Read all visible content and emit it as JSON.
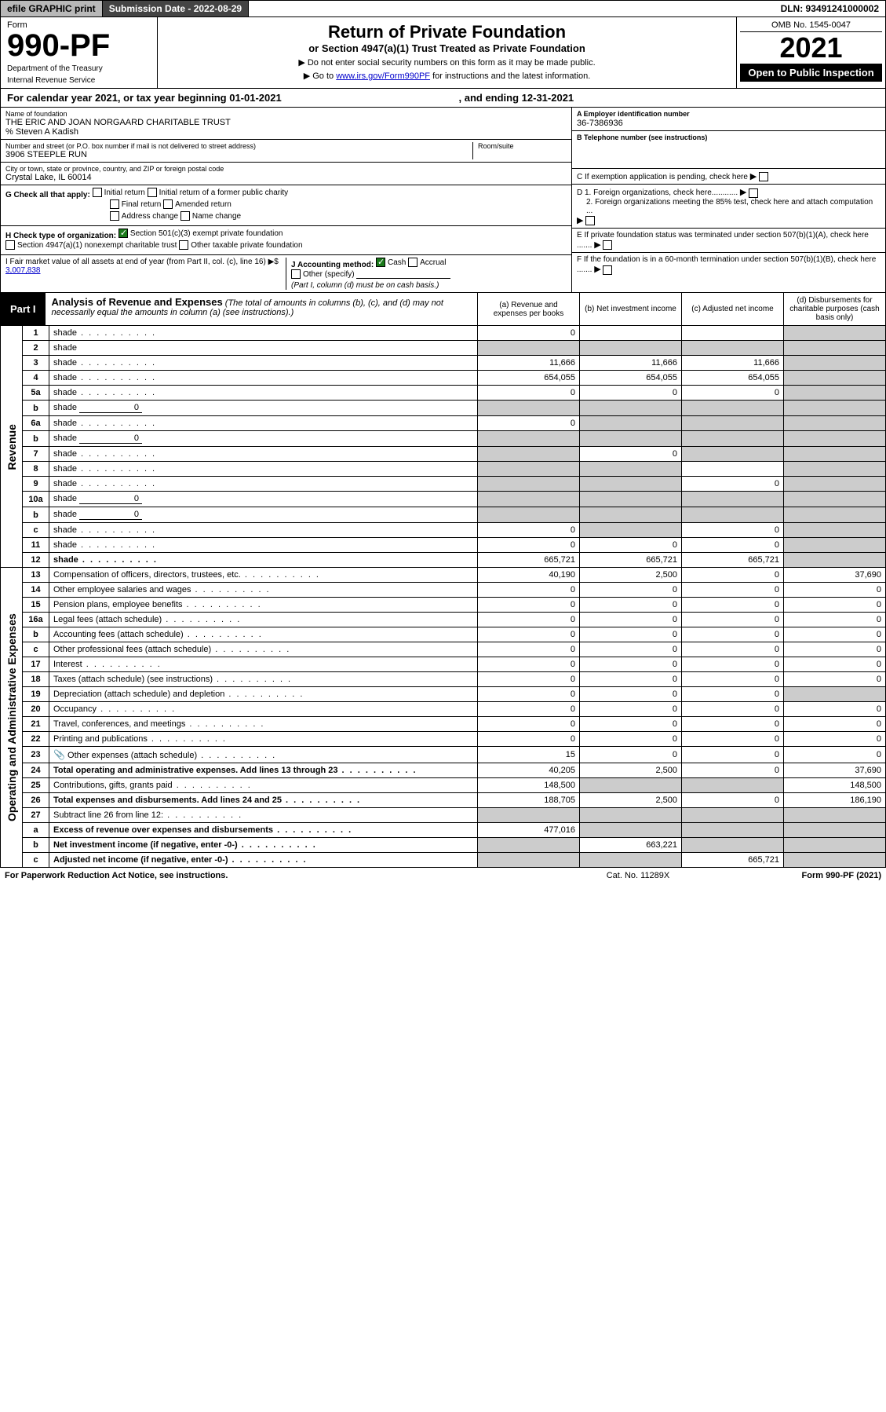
{
  "topbar": {
    "efile": "efile GRAPHIC print",
    "subdate_label": "Submission Date - 2022-08-29",
    "dln": "DLN: 93491241000002"
  },
  "header": {
    "form_label": "Form",
    "form_number": "990-PF",
    "dept1": "Department of the Treasury",
    "dept2": "Internal Revenue Service",
    "title": "Return of Private Foundation",
    "subtitle": "or Section 4947(a)(1) Trust Treated as Private Foundation",
    "instr1": "▶ Do not enter social security numbers on this form as it may be made public.",
    "instr2_prefix": "▶ Go to ",
    "instr2_link": "www.irs.gov/Form990PF",
    "instr2_suffix": " for instructions and the latest information.",
    "omb": "OMB No. 1545-0047",
    "tax_year": "2021",
    "open_public": "Open to Public Inspection"
  },
  "calendar": {
    "left": "For calendar year 2021, or tax year beginning 01-01-2021",
    "right": ", and ending 12-31-2021"
  },
  "info": {
    "name_lbl": "Name of foundation",
    "name_val": "THE ERIC AND JOAN NORGAARD CHARITABLE TRUST",
    "careof": "% Steven A Kadish",
    "addr_lbl": "Number and street (or P.O. box number if mail is not delivered to street address)",
    "addr_val": "3906 STEEPLE RUN",
    "room_lbl": "Room/suite",
    "city_lbl": "City or town, state or province, country, and ZIP or foreign postal code",
    "city_val": "Crystal Lake, IL  60014",
    "a_lbl": "A Employer identification number",
    "a_val": "36-7386936",
    "b_lbl": "B Telephone number (see instructions)",
    "c_lbl": "C If exemption application is pending, check here",
    "d1_lbl": "D 1. Foreign organizations, check here............",
    "d2_lbl": "2. Foreign organizations meeting the 85% test, check here and attach computation ...",
    "e_lbl": "E  If private foundation status was terminated under section 507(b)(1)(A), check here .......",
    "f_lbl": "F  If the foundation is in a 60-month termination under section 507(b)(1)(B), check here ......."
  },
  "g": {
    "label": "G Check all that apply:",
    "opts": [
      "Initial return",
      "Final return",
      "Address change",
      "Initial return of a former public charity",
      "Amended return",
      "Name change"
    ]
  },
  "h": {
    "label": "H Check type of organization:",
    "opt1": "Section 501(c)(3) exempt private foundation",
    "opt2": "Section 4947(a)(1) nonexempt charitable trust",
    "opt3": "Other taxable private foundation"
  },
  "i": {
    "label": "I Fair market value of all assets at end of year (from Part II, col. (c), line 16) ▶$",
    "val": "3,007,838"
  },
  "j": {
    "label": "J Accounting method:",
    "cash": "Cash",
    "accrual": "Accrual",
    "other": "Other (specify)",
    "note": "(Part I, column (d) must be on cash basis.)"
  },
  "part1": {
    "label": "Part I",
    "title": "Analysis of Revenue and Expenses",
    "title_note": " (The total of amounts in columns (b), (c), and (d) may not necessarily equal the amounts in column (a) (see instructions).)",
    "col_a": "(a)  Revenue and expenses per books",
    "col_b": "(b)  Net investment income",
    "col_c": "(c)  Adjusted net income",
    "col_d": "(d)  Disbursements for charitable purposes (cash basis only)"
  },
  "vlabels": {
    "revenue": "Revenue",
    "expenses": "Operating and Administrative Expenses"
  },
  "rows": [
    {
      "n": "1",
      "d": "shade",
      "a": "0",
      "b": "",
      "c": ""
    },
    {
      "n": "2",
      "d": "shade",
      "a": "shade",
      "b": "shade",
      "c": "shade",
      "dotsOnly": true
    },
    {
      "n": "3",
      "d": "shade",
      "a": "11,666",
      "b": "11,666",
      "c": "11,666"
    },
    {
      "n": "4",
      "d": "shade",
      "a": "654,055",
      "b": "654,055",
      "c": "654,055"
    },
    {
      "n": "5a",
      "d": "shade",
      "a": "0",
      "b": "0",
      "c": "0"
    },
    {
      "n": "b",
      "d": "shade",
      "inline": "0",
      "a": "shade",
      "b": "shade",
      "c": "shade"
    },
    {
      "n": "6a",
      "d": "shade",
      "a": "0",
      "b": "shade",
      "c": "shade"
    },
    {
      "n": "b",
      "d": "shade",
      "inline": "0",
      "a": "shade",
      "b": "shade",
      "c": "shade"
    },
    {
      "n": "7",
      "d": "shade",
      "a": "shade",
      "b": "0",
      "c": "shade"
    },
    {
      "n": "8",
      "d": "shade",
      "a": "shade",
      "b": "shade",
      "c": ""
    },
    {
      "n": "9",
      "d": "shade",
      "a": "shade",
      "b": "shade",
      "c": "0"
    },
    {
      "n": "10a",
      "d": "shade",
      "inline": "0",
      "a": "shade",
      "b": "shade",
      "c": "shade"
    },
    {
      "n": "b",
      "d": "shade",
      "inline": "0",
      "a": "shade",
      "b": "shade",
      "c": "shade"
    },
    {
      "n": "c",
      "d": "shade",
      "a": "0",
      "b": "shade",
      "c": "0"
    },
    {
      "n": "11",
      "d": "shade",
      "a": "0",
      "b": "0",
      "c": "0"
    },
    {
      "n": "12",
      "d": "shade",
      "a": "665,721",
      "b": "665,721",
      "c": "665,721",
      "bold": true
    }
  ],
  "exp_rows": [
    {
      "n": "13",
      "d": "Compensation of officers, directors, trustees, etc.",
      "a": "40,190",
      "b": "2,500",
      "c": "0",
      "e": "37,690"
    },
    {
      "n": "14",
      "d": "Other employee salaries and wages",
      "a": "0",
      "b": "0",
      "c": "0",
      "e": "0"
    },
    {
      "n": "15",
      "d": "Pension plans, employee benefits",
      "a": "0",
      "b": "0",
      "c": "0",
      "e": "0"
    },
    {
      "n": "16a",
      "d": "Legal fees (attach schedule)",
      "a": "0",
      "b": "0",
      "c": "0",
      "e": "0"
    },
    {
      "n": "b",
      "d": "Accounting fees (attach schedule)",
      "a": "0",
      "b": "0",
      "c": "0",
      "e": "0"
    },
    {
      "n": "c",
      "d": "Other professional fees (attach schedule)",
      "a": "0",
      "b": "0",
      "c": "0",
      "e": "0"
    },
    {
      "n": "17",
      "d": "Interest",
      "a": "0",
      "b": "0",
      "c": "0",
      "e": "0"
    },
    {
      "n": "18",
      "d": "Taxes (attach schedule) (see instructions)",
      "a": "0",
      "b": "0",
      "c": "0",
      "e": "0"
    },
    {
      "n": "19",
      "d": "Depreciation (attach schedule) and depletion",
      "a": "0",
      "b": "0",
      "c": "0",
      "e": "shade"
    },
    {
      "n": "20",
      "d": "Occupancy",
      "a": "0",
      "b": "0",
      "c": "0",
      "e": "0"
    },
    {
      "n": "21",
      "d": "Travel, conferences, and meetings",
      "a": "0",
      "b": "0",
      "c": "0",
      "e": "0"
    },
    {
      "n": "22",
      "d": "Printing and publications",
      "a": "0",
      "b": "0",
      "c": "0",
      "e": "0"
    },
    {
      "n": "23",
      "d": "Other expenses (attach schedule)",
      "a": "15",
      "b": "0",
      "c": "0",
      "e": "0",
      "clip": true
    },
    {
      "n": "24",
      "d": "Total operating and administrative expenses. Add lines 13 through 23",
      "a": "40,205",
      "b": "2,500",
      "c": "0",
      "e": "37,690",
      "bold": true
    },
    {
      "n": "25",
      "d": "Contributions, gifts, grants paid",
      "a": "148,500",
      "b": "shade",
      "c": "shade",
      "e": "148,500"
    },
    {
      "n": "26",
      "d": "Total expenses and disbursements. Add lines 24 and 25",
      "a": "188,705",
      "b": "2,500",
      "c": "0",
      "e": "186,190",
      "bold": true
    },
    {
      "n": "27",
      "d": "Subtract line 26 from line 12:",
      "a": "shade",
      "b": "shade",
      "c": "shade",
      "e": "shade"
    },
    {
      "n": "a",
      "d": "Excess of revenue over expenses and disbursements",
      "a": "477,016",
      "b": "shade",
      "c": "shade",
      "e": "shade",
      "bold": true
    },
    {
      "n": "b",
      "d": "Net investment income (if negative, enter -0-)",
      "a": "shade",
      "b": "663,221",
      "c": "shade",
      "e": "shade",
      "bold": true
    },
    {
      "n": "c",
      "d": "Adjusted net income (if negative, enter -0-)",
      "a": "shade",
      "b": "shade",
      "c": "665,721",
      "e": "shade",
      "bold": true
    }
  ],
  "footer": {
    "left": "For Paperwork Reduction Act Notice, see instructions.",
    "mid": "Cat. No. 11289X",
    "right": "Form 990-PF (2021)"
  },
  "colors": {
    "shade": "#cccccc",
    "black": "#000000",
    "link": "#0000cc",
    "check_green": "#1a7a1a"
  }
}
